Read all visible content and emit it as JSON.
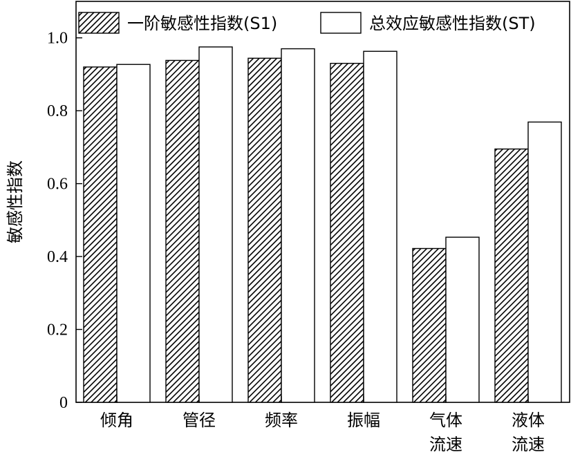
{
  "chart_data": {
    "type": "bar",
    "categories": [
      [
        "倾角"
      ],
      [
        "管径"
      ],
      [
        "频率"
      ],
      [
        "振幅"
      ],
      [
        "气体",
        "流速"
      ],
      [
        "液体",
        "流速"
      ]
    ],
    "series": [
      {
        "name": "一阶敏感性指数(S1)",
        "values": [
          0.92,
          0.938,
          0.944,
          0.93,
          0.422,
          0.695
        ],
        "pattern": "hatch",
        "color": "#000000"
      },
      {
        "name": "总效应敏感性指数(ST)",
        "values": [
          0.927,
          0.975,
          0.97,
          0.963,
          0.453,
          0.769
        ],
        "pattern": "none",
        "color": "#ffffff"
      }
    ],
    "ylabel": "敏感性指数",
    "xlabel": "",
    "ylim": [
      0,
      1.1
    ],
    "yticks": [
      0,
      0.2,
      0.4,
      0.6,
      0.8,
      1.0
    ],
    "ytick_labels": [
      "0",
      "0.2",
      "0.4",
      "0.6",
      "0.8",
      "1.0"
    ],
    "legend_position": "top",
    "grid": false
  }
}
